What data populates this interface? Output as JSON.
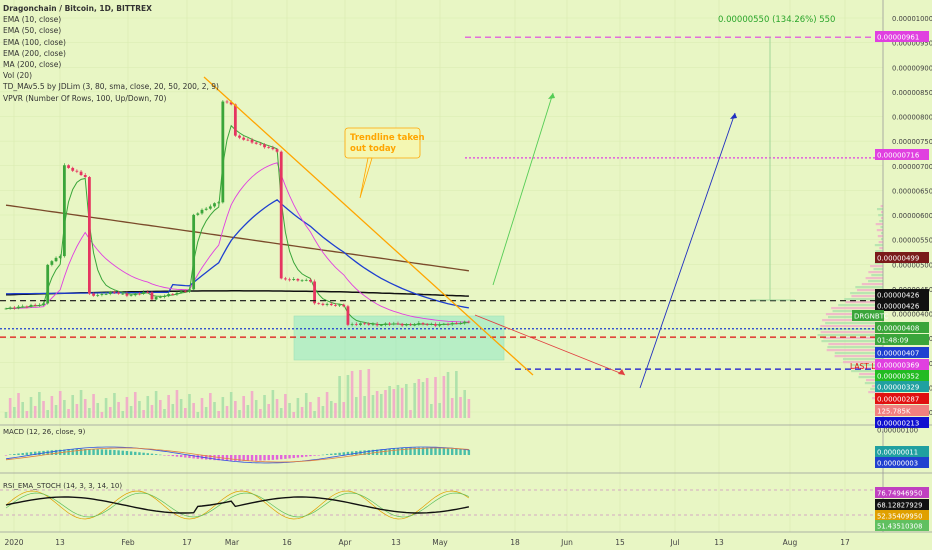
{
  "legend": {
    "title": "Dragonchain / Bitcoin, 1D, BITTREX",
    "ema10": "EMA (10, close)",
    "ema50": "EMA (50, close)",
    "ema100": "EMA (100, close)",
    "ema200": "EMA (200, close)",
    "ma200": "MA (200, close)",
    "vol": "Vol (20)",
    "td": "TD_MAv5.5 by JDLim (3, 80, sma, close, 20, 50, 200, 2, 9)",
    "vpvr": "VPVR (Number Of Rows, 100, Up/Down, 70)"
  },
  "macd_label": "MACD (12, 26, close, 9)",
  "rsi_label": "RSI_EMA_STOCH (14, 3, 3, 14, 10)",
  "annotation_text": "Trendline taken\nout today",
  "measure_text": "0.00000550 (134.26%) 550",
  "last_low_label": "LAST LOW",
  "colors": {
    "background": "#e8f6c4",
    "up_candle": "#3aa53a",
    "down_candle": "#e53561",
    "ema_blue": "#1e3fd0",
    "ema_black": "#111111",
    "ema_brown": "#7a4a2a",
    "magenta": "#e040e0",
    "orange": "#ffa500",
    "red_dashed": "#e01010",
    "blue_dashed": "#1010d0"
  },
  "chart_data": {
    "type": "candlestick",
    "symbol": "DRGNBTC",
    "price_axis": {
      "ticks": [
        "0.00001000",
        "0.00000950",
        "0.00000900",
        "0.00000850",
        "0.00000800",
        "0.00000750",
        "0.00000700",
        "0.00000650",
        "0.00000600",
        "0.00000550",
        "0.00000500",
        "0.00000450",
        "0.00000400",
        "0.00000350",
        "0.00000300",
        "0.00000250",
        "0.00000200"
      ],
      "range": [
        1.9e-06,
        1.04e-05
      ]
    },
    "time_axis": {
      "labels": [
        "2020",
        "13",
        "Feb",
        "17",
        "Mar",
        "16",
        "Apr",
        "13",
        "May",
        "18",
        "Jun",
        "15",
        "Jul",
        "13",
        "Aug",
        "17"
      ]
    },
    "price_labels": [
      {
        "value": "0.00000961",
        "color": "#e040e0"
      },
      {
        "value": "0.00000716",
        "color": "#e040e0"
      },
      {
        "value": "0.00000499",
        "color": "#7a1a1a"
      },
      {
        "value": "0.00000426",
        "color": "#111111"
      },
      {
        "value": "0.00000426",
        "color": "#111111"
      },
      {
        "value": "DRGNBTC",
        "color": "#3aa53a"
      },
      {
        "value": "0.00000408",
        "color": "#3aa53a"
      },
      {
        "value": "01:48:09",
        "color": "#3aa53a"
      },
      {
        "value": "0.00000407",
        "color": "#1e3fd0"
      },
      {
        "value": "0.00000369",
        "color": "#e040e0"
      },
      {
        "value": "0.00000352",
        "color": "#22bb22"
      },
      {
        "value": "0.00000329",
        "color": "#20a0a0"
      },
      {
        "value": "0.00000287",
        "color": "#e01010"
      },
      {
        "value": "125.785K",
        "color": "#f08080"
      },
      {
        "value": "0.00000213",
        "color": "#1010d0"
      }
    ],
    "horizontal_levels": [
      {
        "value": 9.61e-06,
        "style": "dashed",
        "color": "#e040e0"
      },
      {
        "value": 7.16e-06,
        "style": "dotted",
        "color": "#e040e0"
      },
      {
        "value": 4.26e-06,
        "style": "dashed",
        "color": "#111111"
      },
      {
        "value": 3.69e-06,
        "style": "dotted",
        "color": "#1e3fd0"
      },
      {
        "value": 3.52e-06,
        "style": "dashed",
        "color": "#e01010"
      },
      {
        "value": 2.87e-06,
        "style": "dashed",
        "color": "#1010d0"
      }
    ],
    "macd_labels": [
      "0.00000100",
      "0.00000011",
      "0.00000003"
    ],
    "rsi_labels": [
      "76.74946950",
      "68.12827929",
      "52.35409950",
      "51.43510308"
    ]
  }
}
